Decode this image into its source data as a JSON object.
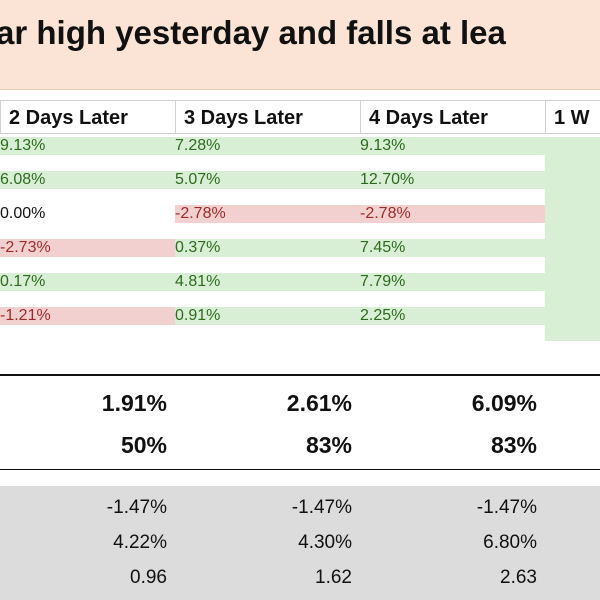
{
  "header": {
    "title": "ar high yesterday and falls at lea"
  },
  "table": {
    "columns": [
      "2 Days Later",
      "3 Days Later",
      "4 Days Later",
      "1 W"
    ],
    "rows": [
      {
        "cells": [
          "9.13%",
          "7.28%",
          "9.13%"
        ],
        "tones": [
          "green",
          "green",
          "green"
        ]
      },
      {
        "cells": [
          "6.08%",
          "5.07%",
          "12.70%"
        ],
        "tones": [
          "green",
          "green",
          "green"
        ]
      },
      {
        "cells": [
          "0.00%",
          "-2.78%",
          "-2.78%"
        ],
        "tones": [
          "none",
          "red",
          "red"
        ]
      },
      {
        "cells": [
          "-2.73%",
          "0.37%",
          "7.45%"
        ],
        "tones": [
          "red",
          "green",
          "green"
        ]
      },
      {
        "cells": [
          "0.17%",
          "4.81%",
          "7.79%"
        ],
        "tones": [
          "green",
          "green",
          "green"
        ]
      },
      {
        "cells": [
          "-1.21%",
          "0.91%",
          "2.25%"
        ],
        "tones": [
          "red",
          "green",
          "green"
        ]
      }
    ],
    "summary": [
      [
        "1.91%",
        "2.61%",
        "6.09%"
      ],
      [
        "50%",
        "83%",
        "83%"
      ]
    ],
    "stats": [
      [
        "-1.47%",
        "-1.47%",
        "-1.47%"
      ],
      [
        "4.22%",
        "4.30%",
        "6.80%"
      ],
      [
        "0.96",
        "1.62",
        "2.63"
      ]
    ]
  }
}
